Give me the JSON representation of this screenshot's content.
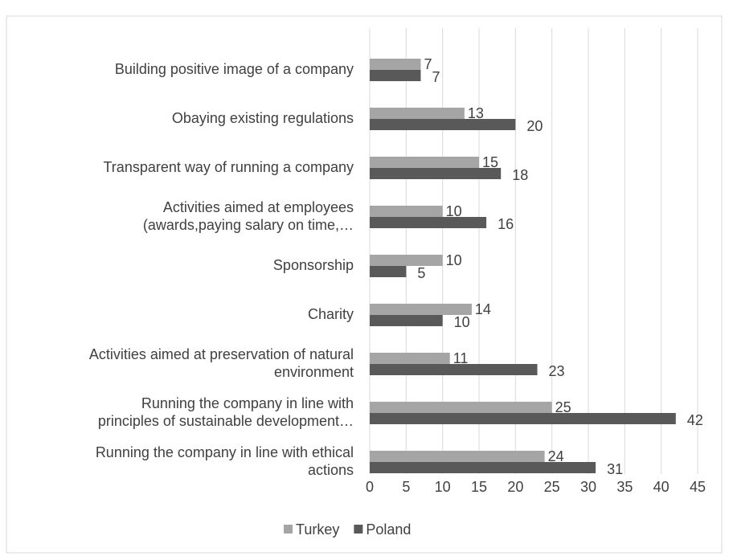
{
  "chart_data": {
    "type": "barh",
    "categories": [
      "Building positive image of a company",
      "Obaying existing regulations",
      "Transparent way of running a company",
      "Activities aimed at employees\n(awards,paying salary on time,…",
      "Sponsorship",
      "Charity",
      "Activities aimed at preservation of natural\nenvironment",
      "Running the company in line with\nprinciples of sustainable development…",
      "Running the company in line with ethical\nactions"
    ],
    "series": [
      {
        "name": "Turkey",
        "color": "#a5a5a5",
        "values": [
          7,
          13,
          15,
          10,
          10,
          14,
          11,
          25,
          24
        ]
      },
      {
        "name": "Poland",
        "color": "#595959",
        "values": [
          7,
          20,
          18,
          16,
          5,
          10,
          23,
          42,
          31
        ]
      }
    ],
    "xlim": [
      0,
      45
    ],
    "xticks": [
      0,
      5,
      10,
      15,
      20,
      25,
      30,
      35,
      40,
      45
    ],
    "grid": true,
    "legend": "bottom"
  }
}
